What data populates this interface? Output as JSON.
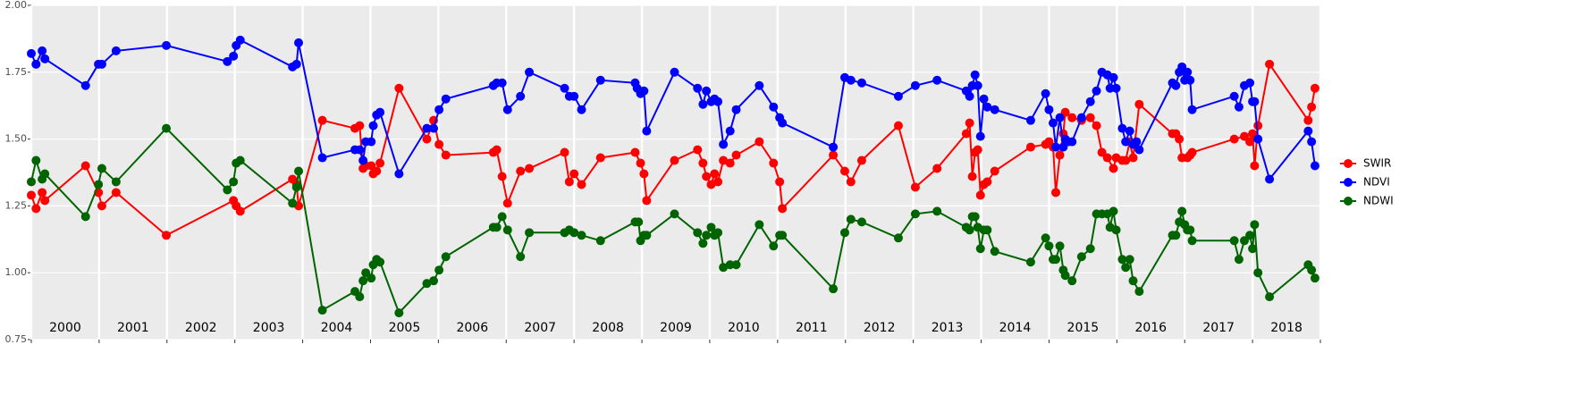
{
  "chart_data": {
    "type": "line",
    "grid": true,
    "legend": "right",
    "xlim": [
      2000,
      2019
    ],
    "ylim": [
      0.75,
      2.0
    ],
    "xticks": [
      2000,
      2001,
      2002,
      2003,
      2004,
      2005,
      2006,
      2007,
      2008,
      2009,
      2010,
      2011,
      2012,
      2013,
      2014,
      2015,
      2016,
      2017,
      2018,
      2019
    ],
    "x_labels": [
      {
        "value": 2000.5,
        "label": "2000"
      },
      {
        "value": 2001.5,
        "label": "2001"
      },
      {
        "value": 2002.5,
        "label": "2002"
      },
      {
        "value": 2003.5,
        "label": "2003"
      },
      {
        "value": 2004.5,
        "label": "2004"
      },
      {
        "value": 2005.5,
        "label": "2005"
      },
      {
        "value": 2006.5,
        "label": "2006"
      },
      {
        "value": 2007.5,
        "label": "2007"
      },
      {
        "value": 2008.5,
        "label": "2008"
      },
      {
        "value": 2009.5,
        "label": "2009"
      },
      {
        "value": 2010.5,
        "label": "2010"
      },
      {
        "value": 2011.5,
        "label": "2011"
      },
      {
        "value": 2012.5,
        "label": "2012"
      },
      {
        "value": 2013.5,
        "label": "2013"
      },
      {
        "value": 2014.5,
        "label": "2014"
      },
      {
        "value": 2015.5,
        "label": "2015"
      },
      {
        "value": 2016.5,
        "label": "2016"
      },
      {
        "value": 2017.5,
        "label": "2017"
      },
      {
        "value": 2018.5,
        "label": "2018"
      }
    ],
    "yticks": [
      {
        "value": 0.75,
        "label": "0.75"
      },
      {
        "value": 1.0,
        "label": "1.00"
      },
      {
        "value": 1.25,
        "label": "1.25"
      },
      {
        "value": 1.5,
        "label": "1.50"
      },
      {
        "value": 1.75,
        "label": "1.75"
      },
      {
        "value": 2.0,
        "label": "2.00"
      }
    ],
    "series": [
      {
        "name": "SWIR",
        "color": "#ff0000",
        "x": [
          2000.0,
          2000.07,
          2000.16,
          2000.2,
          2000.8,
          2000.99,
          2001.04,
          2001.25,
          2001.99,
          2002.98,
          2003.02,
          2003.08,
          2003.85,
          2003.91,
          2003.94,
          2004.29,
          2004.77,
          2004.84,
          2004.89,
          2004.93,
          2005.01,
          2005.04,
          2005.09,
          2005.14,
          2005.42,
          2005.83,
          2005.93,
          2006.01,
          2006.11,
          2006.81,
          2006.86,
          2006.94,
          2007.02,
          2007.21,
          2007.34,
          2007.86,
          2007.93,
          2008.0,
          2008.11,
          2008.39,
          2008.9,
          2008.98,
          2009.03,
          2009.07,
          2009.48,
          2009.82,
          2009.9,
          2009.95,
          2010.02,
          2010.07,
          2010.12,
          2010.2,
          2010.3,
          2010.39,
          2010.73,
          2010.94,
          2011.03,
          2011.07,
          2011.82,
          2011.99,
          2012.08,
          2012.24,
          2012.78,
          2013.03,
          2013.35,
          2013.78,
          2013.83,
          2013.87,
          2013.91,
          2013.95,
          2013.99,
          2014.04,
          2014.09,
          2014.2,
          2014.73,
          2014.95,
          2015.0,
          2015.06,
          2015.1,
          2015.16,
          2015.21,
          2015.24,
          2015.34,
          2015.48,
          2015.61,
          2015.7,
          2015.78,
          2015.86,
          2015.95,
          2015.99,
          2016.08,
          2016.13,
          2016.19,
          2016.24,
          2016.33,
          2016.82,
          2016.87,
          2016.92,
          2016.96,
          2017.04,
          2017.08,
          2017.11,
          2017.73,
          2017.88,
          2017.96,
          2018.0,
          2018.03,
          2018.08,
          2018.25,
          2018.82,
          2018.87,
          2018.92
        ],
        "values": [
          1.29,
          1.24,
          1.3,
          1.27,
          1.4,
          1.3,
          1.25,
          1.3,
          1.14,
          1.27,
          1.25,
          1.23,
          1.35,
          1.33,
          1.25,
          1.57,
          1.54,
          1.55,
          1.39,
          1.4,
          1.4,
          1.37,
          1.38,
          1.41,
          1.69,
          1.5,
          1.57,
          1.48,
          1.44,
          1.45,
          1.46,
          1.36,
          1.26,
          1.38,
          1.39,
          1.45,
          1.34,
          1.37,
          1.33,
          1.43,
          1.45,
          1.41,
          1.37,
          1.27,
          1.42,
          1.46,
          1.41,
          1.36,
          1.33,
          1.37,
          1.34,
          1.42,
          1.41,
          1.44,
          1.49,
          1.41,
          1.34,
          1.24,
          1.44,
          1.38,
          1.34,
          1.42,
          1.55,
          1.32,
          1.39,
          1.52,
          1.56,
          1.36,
          1.45,
          1.46,
          1.29,
          1.33,
          1.34,
          1.38,
          1.47,
          1.48,
          1.49,
          1.47,
          1.3,
          1.44,
          1.52,
          1.6,
          1.58,
          1.57,
          1.58,
          1.55,
          1.45,
          1.43,
          1.39,
          1.43,
          1.42,
          1.42,
          1.49,
          1.43,
          1.63,
          1.52,
          1.52,
          1.5,
          1.43,
          1.43,
          1.44,
          1.45,
          1.5,
          1.51,
          1.49,
          1.52,
          1.4,
          1.55,
          1.78,
          1.57,
          1.62,
          1.69
        ]
      },
      {
        "name": "NDVI",
        "color": "#0000ff",
        "x": [
          2000.0,
          2000.07,
          2000.16,
          2000.2,
          2000.8,
          2000.99,
          2001.04,
          2001.25,
          2001.99,
          2002.89,
          2002.98,
          2003.02,
          2003.08,
          2003.85,
          2003.91,
          2003.94,
          2004.29,
          2004.77,
          2004.84,
          2004.89,
          2004.93,
          2005.01,
          2005.04,
          2005.09,
          2005.14,
          2005.42,
          2005.83,
          2005.93,
          2006.01,
          2006.11,
          2006.81,
          2006.86,
          2006.94,
          2007.02,
          2007.21,
          2007.34,
          2007.86,
          2007.93,
          2008.0,
          2008.11,
          2008.39,
          2008.9,
          2008.93,
          2008.98,
          2009.03,
          2009.07,
          2009.48,
          2009.82,
          2009.9,
          2009.95,
          2010.02,
          2010.07,
          2010.12,
          2010.2,
          2010.3,
          2010.39,
          2010.73,
          2010.94,
          2011.03,
          2011.07,
          2011.82,
          2011.99,
          2012.08,
          2012.24,
          2012.78,
          2013.03,
          2013.35,
          2013.78,
          2013.83,
          2013.87,
          2013.91,
          2013.95,
          2013.99,
          2014.04,
          2014.09,
          2014.2,
          2014.73,
          2014.95,
          2015.0,
          2015.06,
          2015.1,
          2015.16,
          2015.21,
          2015.24,
          2015.29,
          2015.34,
          2015.48,
          2015.61,
          2015.7,
          2015.78,
          2015.86,
          2015.9,
          2015.95,
          2015.99,
          2016.08,
          2016.13,
          2016.19,
          2016.24,
          2016.29,
          2016.33,
          2016.82,
          2016.87,
          2016.92,
          2016.96,
          2017.0,
          2017.04,
          2017.08,
          2017.11,
          2017.73,
          2017.8,
          2017.88,
          2017.96,
          2018.0,
          2018.03,
          2018.08,
          2018.25,
          2018.82,
          2018.87,
          2018.92
        ],
        "values": [
          1.82,
          1.78,
          1.83,
          1.8,
          1.7,
          1.78,
          1.78,
          1.83,
          1.85,
          1.79,
          1.81,
          1.85,
          1.87,
          1.77,
          1.78,
          1.86,
          1.43,
          1.46,
          1.46,
          1.42,
          1.49,
          1.49,
          1.55,
          1.59,
          1.6,
          1.37,
          1.54,
          1.54,
          1.61,
          1.65,
          1.7,
          1.71,
          1.71,
          1.61,
          1.66,
          1.75,
          1.69,
          1.66,
          1.66,
          1.61,
          1.72,
          1.71,
          1.69,
          1.67,
          1.68,
          1.53,
          1.75,
          1.69,
          1.63,
          1.68,
          1.64,
          1.65,
          1.64,
          1.48,
          1.53,
          1.61,
          1.7,
          1.62,
          1.58,
          1.56,
          1.47,
          1.73,
          1.72,
          1.71,
          1.66,
          1.7,
          1.72,
          1.68,
          1.66,
          1.7,
          1.74,
          1.7,
          1.51,
          1.65,
          1.62,
          1.61,
          1.57,
          1.67,
          1.61,
          1.56,
          1.47,
          1.58,
          1.47,
          1.5,
          1.49,
          1.49,
          1.58,
          1.64,
          1.68,
          1.75,
          1.74,
          1.69,
          1.73,
          1.69,
          1.54,
          1.49,
          1.53,
          1.48,
          1.49,
          1.46,
          1.71,
          1.7,
          1.75,
          1.77,
          1.72,
          1.75,
          1.72,
          1.61,
          1.66,
          1.62,
          1.7,
          1.71,
          1.64,
          1.64,
          1.5,
          1.35,
          1.53,
          1.49,
          1.4
        ]
      },
      {
        "name": "NDWI",
        "color": "#006400",
        "x": [
          2000.0,
          2000.07,
          2000.16,
          2000.2,
          2000.8,
          2000.99,
          2001.04,
          2001.25,
          2001.99,
          2002.89,
          2002.98,
          2003.02,
          2003.08,
          2003.85,
          2003.91,
          2003.94,
          2004.29,
          2004.77,
          2004.84,
          2004.89,
          2004.93,
          2005.01,
          2005.04,
          2005.09,
          2005.14,
          2005.42,
          2005.83,
          2005.93,
          2006.01,
          2006.11,
          2006.81,
          2006.86,
          2006.94,
          2007.02,
          2007.21,
          2007.34,
          2007.86,
          2007.93,
          2008.0,
          2008.11,
          2008.39,
          2008.9,
          2008.95,
          2008.98,
          2009.03,
          2009.07,
          2009.48,
          2009.82,
          2009.9,
          2009.95,
          2010.02,
          2010.07,
          2010.12,
          2010.2,
          2010.3,
          2010.39,
          2010.73,
          2010.94,
          2011.03,
          2011.07,
          2011.82,
          2011.99,
          2012.08,
          2012.24,
          2012.78,
          2013.03,
          2013.35,
          2013.78,
          2013.83,
          2013.87,
          2013.91,
          2013.95,
          2013.99,
          2014.04,
          2014.09,
          2014.2,
          2014.73,
          2014.95,
          2015.0,
          2015.06,
          2015.1,
          2015.16,
          2015.21,
          2015.24,
          2015.34,
          2015.48,
          2015.61,
          2015.7,
          2015.78,
          2015.86,
          2015.9,
          2015.95,
          2015.99,
          2016.08,
          2016.13,
          2016.19,
          2016.24,
          2016.33,
          2016.82,
          2016.87,
          2016.92,
          2016.96,
          2017.0,
          2017.04,
          2017.08,
          2017.11,
          2017.73,
          2017.8,
          2017.88,
          2017.96,
          2018.0,
          2018.03,
          2018.08,
          2018.25,
          2018.82,
          2018.87,
          2018.92
        ],
        "values": [
          1.34,
          1.42,
          1.35,
          1.37,
          1.21,
          1.33,
          1.39,
          1.34,
          1.54,
          1.31,
          1.34,
          1.41,
          1.42,
          1.26,
          1.32,
          1.38,
          0.86,
          0.93,
          0.91,
          0.97,
          1.0,
          0.98,
          1.03,
          1.05,
          1.04,
          0.85,
          0.96,
          0.97,
          1.01,
          1.06,
          1.17,
          1.17,
          1.21,
          1.16,
          1.06,
          1.15,
          1.15,
          1.16,
          1.15,
          1.14,
          1.12,
          1.19,
          1.19,
          1.12,
          1.14,
          1.14,
          1.22,
          1.15,
          1.11,
          1.14,
          1.17,
          1.14,
          1.15,
          1.02,
          1.03,
          1.03,
          1.18,
          1.1,
          1.14,
          1.14,
          0.94,
          1.15,
          1.2,
          1.19,
          1.13,
          1.22,
          1.23,
          1.17,
          1.16,
          1.21,
          1.21,
          1.17,
          1.09,
          1.16,
          1.16,
          1.08,
          1.04,
          1.13,
          1.1,
          1.05,
          1.05,
          1.1,
          1.01,
          0.99,
          0.97,
          1.06,
          1.09,
          1.22,
          1.22,
          1.22,
          1.17,
          1.23,
          1.16,
          1.05,
          1.02,
          1.05,
          0.97,
          0.93,
          1.14,
          1.14,
          1.19,
          1.23,
          1.18,
          1.16,
          1.16,
          1.12,
          1.12,
          1.05,
          1.12,
          1.14,
          1.09,
          1.18,
          1.0,
          0.91,
          1.03,
          1.01,
          0.98
        ]
      }
    ]
  }
}
